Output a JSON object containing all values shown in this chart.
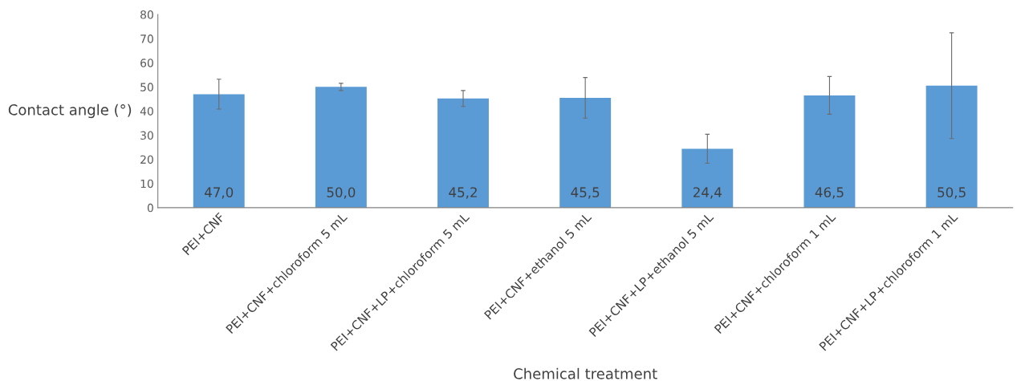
{
  "chart_data": {
    "type": "bar",
    "xlabel": "Chemical treatment",
    "ylabel": "Contact angle (°)",
    "categories": [
      "PEI+CNF",
      "PEI+CNF+chloroform 5 mL",
      "PEI+CNF+LP+chloroform 5 mL",
      "PEI+CNF+ethanol 5 mL",
      "PEI+CNF+LP+ethanol 5 mL",
      "PEI+CNF+chloroform 1 mL",
      "PEI+CNF+LP+chloroform 1 mL"
    ],
    "values": [
      47.0,
      50.0,
      45.2,
      45.5,
      24.4,
      46.5,
      50.5
    ],
    "errors": [
      6.2,
      1.5,
      3.3,
      8.4,
      6.0,
      7.8,
      21.9
    ],
    "value_labels": [
      "47,0",
      "50,0",
      "45,2",
      "45,5",
      "24,4",
      "46,5",
      "50,5"
    ],
    "color": "#5b9bd5",
    "ylim": [
      0,
      80
    ],
    "yticks": [
      0,
      10,
      20,
      30,
      40,
      50,
      60,
      70,
      80
    ],
    "grid": false,
    "legend": false
  }
}
